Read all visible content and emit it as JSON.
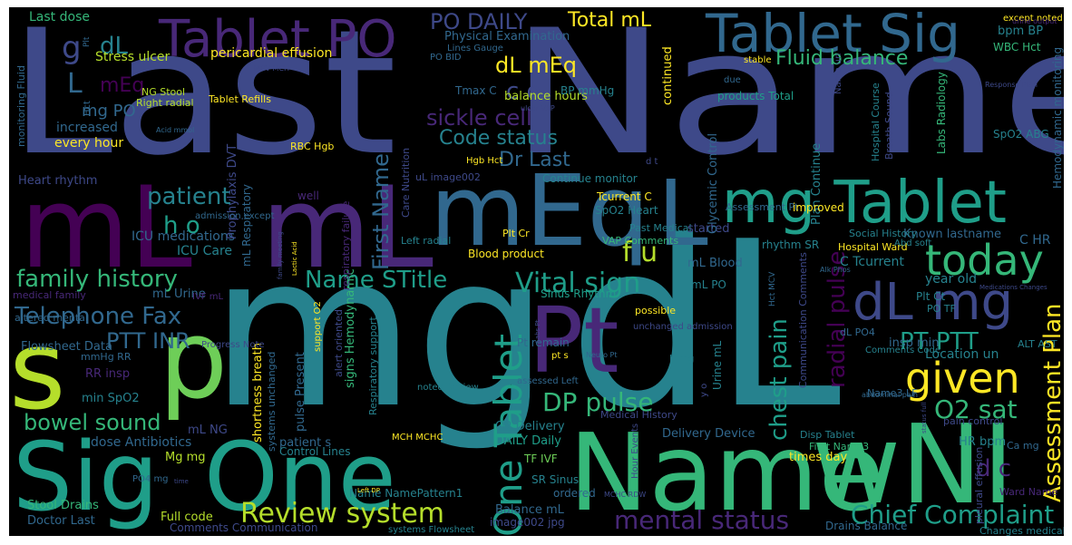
{
  "colors": {
    "background": "#000000",
    "page": "#ffffff",
    "palette": [
      "#440154",
      "#482878",
      "#3e4989",
      "#31688e",
      "#26828e",
      "#1f9e89",
      "#35b779",
      "#6ece58",
      "#b5de2b",
      "#fde725"
    ]
  },
  "words": [
    {
      "text": "Last",
      "color": "#3e4989"
    },
    {
      "text": "Name",
      "color": "#3e4989"
    },
    {
      "text": "mg",
      "color": "#26828e"
    },
    {
      "text": "dL",
      "color": "#26828e"
    },
    {
      "text": "mL",
      "color": "#440154"
    },
    {
      "text": "mL",
      "color": "#482878"
    },
    {
      "text": "s",
      "color": "#b5de2b"
    },
    {
      "text": "p",
      "color": "#6ece58"
    },
    {
      "text": "Sig",
      "color": "#1f9e89"
    },
    {
      "text": "One",
      "color": "#1f9e89"
    },
    {
      "text": "Name",
      "color": "#35b779"
    },
    {
      "text": "wNI",
      "color": "#35b779"
    },
    {
      "text": "Pt",
      "color": "#482878"
    },
    {
      "text": "mEq",
      "color": "#31688e"
    },
    {
      "text": "L",
      "color": "#31688e"
    },
    {
      "text": "mg Tablet",
      "color": "#1f9e89"
    },
    {
      "text": "Tablet Sig",
      "color": "#31688e"
    },
    {
      "text": "Tablet PO",
      "color": "#482878"
    },
    {
      "text": "dL",
      "color": "#3e4989"
    },
    {
      "text": "mg",
      "color": "#3e4989"
    },
    {
      "text": "today",
      "color": "#35b779"
    },
    {
      "text": "given",
      "color": "#fde725"
    },
    {
      "text": "One Tablet",
      "color": "#1f9e89"
    },
    {
      "text": "Review system",
      "color": "#b5de2b"
    },
    {
      "text": "mental status",
      "color": "#482878"
    },
    {
      "text": "Chief Complaint",
      "color": "#1f9e89"
    },
    {
      "text": "family history",
      "color": "#35b779"
    },
    {
      "text": "Telephone Fax",
      "color": "#31688e"
    },
    {
      "text": "bowel sound",
      "color": "#35b779"
    },
    {
      "text": "Vital sign",
      "color": "#1f9e89"
    },
    {
      "text": "DP pulse",
      "color": "#35b779"
    },
    {
      "text": "O2 sat",
      "color": "#35b779"
    },
    {
      "text": "Name STitle",
      "color": "#1f9e89"
    },
    {
      "text": "PTT INR",
      "color": "#31688e"
    },
    {
      "text": "patient",
      "color": "#26828e"
    },
    {
      "text": "h o",
      "color": "#1f9e89"
    },
    {
      "text": "f u",
      "color": "#b5de2b"
    },
    {
      "text": "d c",
      "color": "#482878"
    },
    {
      "text": "PT PTT",
      "color": "#1f9e89"
    },
    {
      "text": "Assessment Plan",
      "color": "#fde725"
    },
    {
      "text": "chest pain",
      "color": "#1f9e89"
    },
    {
      "text": "radial pulse",
      "color": "#440154"
    },
    {
      "text": "First Name",
      "color": "#31688e"
    },
    {
      "text": "sickle cell",
      "color": "#482878"
    },
    {
      "text": "Code status",
      "color": "#26828e"
    },
    {
      "text": "Dr Last",
      "color": "#31688e"
    },
    {
      "text": "dL mEq",
      "color": "#fde725"
    },
    {
      "text": "c o",
      "color": "#3e4989"
    },
    {
      "text": "PO DAILY",
      "color": "#3e4989"
    },
    {
      "text": "Total mL",
      "color": "#fde725"
    },
    {
      "text": "Fluid balance",
      "color": "#35b779"
    },
    {
      "text": "g",
      "color": "#3e4989"
    },
    {
      "text": "dL",
      "color": "#26828e"
    },
    {
      "text": "L",
      "color": "#31688e"
    },
    {
      "text": "mEq",
      "color": "#440154"
    },
    {
      "text": "mg PO",
      "color": "#31688e"
    },
    {
      "text": "Last dose",
      "color": "#35b779"
    },
    {
      "text": "Stress ulcer",
      "color": "#b5de2b"
    },
    {
      "text": "pericardial effusion",
      "color": "#fde725"
    },
    {
      "text": "Physical Examination",
      "color": "#31688e"
    },
    {
      "text": "Lines Gauge",
      "color": "#31688e"
    },
    {
      "text": "increased",
      "color": "#31688e"
    },
    {
      "text": "every hour",
      "color": "#fde725"
    },
    {
      "text": "Heart rhythm",
      "color": "#3e4989"
    },
    {
      "text": "ICU medications",
      "color": "#31688e"
    },
    {
      "text": "ICU Care",
      "color": "#26828e"
    },
    {
      "text": "mL Urine",
      "color": "#31688e"
    },
    {
      "text": "Flowsheet Data",
      "color": "#31688e"
    },
    {
      "text": "mmHg RR",
      "color": "#31688e"
    },
    {
      "text": "RR insp",
      "color": "#482878"
    },
    {
      "text": "min SpO2",
      "color": "#26828e"
    },
    {
      "text": "dose Antibiotics",
      "color": "#31688e"
    },
    {
      "text": "Mg mg",
      "color": "#b5de2b"
    },
    {
      "text": "Stool Drains",
      "color": "#35b779"
    },
    {
      "text": "Doctor Last",
      "color": "#31688e"
    },
    {
      "text": "Full code",
      "color": "#b5de2b"
    },
    {
      "text": "Comments Communication",
      "color": "#3e4989"
    },
    {
      "text": "Name NamePattern1",
      "color": "#26828e"
    },
    {
      "text": "Balance mL",
      "color": "#31688e"
    },
    {
      "text": "image002 jpg",
      "color": "#3e4989"
    },
    {
      "text": "O2 Delivery",
      "color": "#26828e"
    },
    {
      "text": "DAILY Daily",
      "color": "#1f9e89"
    },
    {
      "text": "TF IVF",
      "color": "#6ece58"
    },
    {
      "text": "SR Sinus",
      "color": "#26828e"
    },
    {
      "text": "ordered",
      "color": "#31688e"
    },
    {
      "text": "Delivery Device",
      "color": "#31688e"
    },
    {
      "text": "times day",
      "color": "#fde725"
    },
    {
      "text": "Continue monitor",
      "color": "#26828e"
    },
    {
      "text": "Blood product",
      "color": "#fde725"
    },
    {
      "text": "Sinus Rhythm",
      "color": "#1f9e89"
    },
    {
      "text": "Tcurrent C",
      "color": "#fde725"
    },
    {
      "text": "SpO2 Heart",
      "color": "#26828e"
    },
    {
      "text": "VAP Comments",
      "color": "#35b779"
    },
    {
      "text": "Plt Cr",
      "color": "#fde725"
    },
    {
      "text": "Past Medical",
      "color": "#26828e"
    },
    {
      "text": "started",
      "color": "#3e4989"
    },
    {
      "text": "mL Blood",
      "color": "#31688e"
    },
    {
      "text": "mL PO",
      "color": "#26828e"
    },
    {
      "text": "balance hours",
      "color": "#b5de2b"
    },
    {
      "text": "BP mmHg",
      "color": "#26828e"
    },
    {
      "text": "Tmax C",
      "color": "#31688e"
    },
    {
      "text": "PO BID",
      "color": "#31688e"
    },
    {
      "text": "Known lastname",
      "color": "#31688e"
    },
    {
      "text": "Social History",
      "color": "#26828e"
    },
    {
      "text": "Hospital Ward",
      "color": "#fde725"
    },
    {
      "text": "C Tcurrent",
      "color": "#26828e"
    },
    {
      "text": "C HR",
      "color": "#31688e"
    },
    {
      "text": "year old",
      "color": "#26828e"
    },
    {
      "text": "Plt Ct",
      "color": "#26828e"
    },
    {
      "text": "PO TF",
      "color": "#26828e"
    },
    {
      "text": "insp min",
      "color": "#31688e"
    },
    {
      "text": "Location un",
      "color": "#26828e"
    },
    {
      "text": "Comments Code",
      "color": "#26828e"
    },
    {
      "text": "HR bpm",
      "color": "#26828e"
    },
    {
      "text": "Disp Tablet",
      "color": "#26828e"
    },
    {
      "text": "First Name3",
      "color": "#35b779"
    },
    {
      "text": "Drains Balance",
      "color": "#31688e"
    },
    {
      "text": "Changes medical",
      "color": "#26828e"
    },
    {
      "text": "bpm BP",
      "color": "#26828e"
    },
    {
      "text": "WBC Hct",
      "color": "#35b779"
    },
    {
      "text": "SpO2 ABG",
      "color": "#26828e"
    },
    {
      "text": "Labs Radiology",
      "color": "#35b779"
    },
    {
      "text": "Hemodynamic monitoring",
      "color": "#31688e"
    },
    {
      "text": "Glycemic Control",
      "color": "#31688e"
    },
    {
      "text": "Plan Continue",
      "color": "#26828e"
    },
    {
      "text": "Assessment Pt",
      "color": "#31688e"
    },
    {
      "text": "improved",
      "color": "#fde725"
    },
    {
      "text": "rhythm SR",
      "color": "#26828e"
    },
    {
      "text": "Abd soft",
      "color": "#26828e"
    },
    {
      "text": "ALT AST",
      "color": "#26828e"
    },
    {
      "text": "pain control",
      "color": "#3e4989"
    },
    {
      "text": "Ca mg",
      "color": "#31688e"
    },
    {
      "text": "Ward Name",
      "color": "#482878"
    },
    {
      "text": "Name3 LF",
      "color": "#31688e"
    },
    {
      "text": "dL PO4",
      "color": "#31688e"
    },
    {
      "text": "continued",
      "color": "#fde725"
    },
    {
      "text": "products Total",
      "color": "#1f9e89"
    },
    {
      "text": "Urine mL",
      "color": "#26828e"
    },
    {
      "text": "L mg",
      "color": "#26828e"
    },
    {
      "text": "Medical History",
      "color": "#3e4989"
    },
    {
      "text": "Pt remain",
      "color": "#31688e"
    },
    {
      "text": "noted Review",
      "color": "#26828e"
    },
    {
      "text": "MCH MCHC",
      "color": "#fde725"
    },
    {
      "text": "assessed Left",
      "color": "#31688e"
    },
    {
      "text": "possible",
      "color": "#fde725"
    },
    {
      "text": "Left radial",
      "color": "#26828e"
    },
    {
      "text": "uL image002",
      "color": "#3e4989"
    },
    {
      "text": "Hgb Hct",
      "color": "#fde725"
    },
    {
      "text": "Care Nutrition",
      "color": "#3e4989"
    },
    {
      "text": "signs Hemodynamic",
      "color": "#35b779"
    },
    {
      "text": "pulse Present",
      "color": "#31688e"
    },
    {
      "text": "Respiratory support",
      "color": "#26828e"
    },
    {
      "text": "respiratory failure",
      "color": "#482878"
    },
    {
      "text": "alert oriented",
      "color": "#3e4989"
    },
    {
      "text": "patient s",
      "color": "#31688e"
    },
    {
      "text": "Control Lines",
      "color": "#26828e"
    },
    {
      "text": "shortness breath",
      "color": "#fde725"
    },
    {
      "text": "systems unchanged",
      "color": "#31688e"
    },
    {
      "text": "mL NG",
      "color": "#3e4989"
    },
    {
      "text": "mL Respiratory",
      "color": "#31688e"
    },
    {
      "text": "Prophylaxis DVT",
      "color": "#3e4989"
    },
    {
      "text": "RBC Hgb",
      "color": "#fde725"
    },
    {
      "text": "Tablet Refills",
      "color": "#fde725"
    },
    {
      "text": "NG Stool",
      "color": "#b5de2b"
    },
    {
      "text": "Right radial",
      "color": "#b5de2b"
    },
    {
      "text": "Acid mmol",
      "color": "#31688e"
    },
    {
      "text": "MCV MCH",
      "color": "#3e4989"
    },
    {
      "text": "monitoring Fluid",
      "color": "#31688e"
    },
    {
      "text": "altered mental",
      "color": "#31688e"
    },
    {
      "text": "medical family",
      "color": "#482878"
    },
    {
      "text": "Progress Note",
      "color": "#3e4989"
    },
    {
      "text": "PO4 mg",
      "color": "#31688e"
    },
    {
      "text": "Hour Events",
      "color": "#3e4989"
    },
    {
      "text": "Communication Comments",
      "color": "#3e4989"
    },
    {
      "text": "Hospital Course",
      "color": "#26828e"
    },
    {
      "text": "Breath Sound",
      "color": "#3e4989"
    },
    {
      "text": "pleural effusion",
      "color": "#3e4989"
    },
    {
      "text": "abdominal pain",
      "color": "#31688e"
    },
    {
      "text": "Response Plan",
      "color": "#3e4989"
    },
    {
      "text": "except noted",
      "color": "#fde725"
    },
    {
      "text": "stable",
      "color": "#fde725"
    },
    {
      "text": "Name un",
      "color": "#3e4989"
    },
    {
      "text": "well",
      "color": "#482878"
    },
    {
      "text": "systems Flowsheet",
      "color": "#26828e"
    },
    {
      "text": "IVF mL",
      "color": "#482878"
    },
    {
      "text": "admission except",
      "color": "#31688e"
    },
    {
      "text": "unchanged admission",
      "color": "#3e4989"
    },
    {
      "text": "support O2",
      "color": "#fde725"
    },
    {
      "text": "pt s",
      "color": "#fde725"
    },
    {
      "text": "urine output",
      "color": "#482878"
    },
    {
      "text": "Plt",
      "color": "#31688e"
    },
    {
      "text": "Hct",
      "color": "#31688e"
    },
    {
      "text": "ulcer VAP",
      "color": "#3e4989"
    },
    {
      "text": "due",
      "color": "#31688e"
    },
    {
      "text": "Neuro Pt",
      "color": "#31688e"
    },
    {
      "text": "Alk Phos",
      "color": "#31688e"
    },
    {
      "text": "Hct MCV",
      "color": "#31688e"
    },
    {
      "text": "MCHC RDW",
      "color": "#3e4989"
    },
    {
      "text": "Left DP",
      "color": "#fde725"
    },
    {
      "text": "Lactic Acid",
      "color": "#fde725"
    },
    {
      "text": "family meeting",
      "color": "#3e4989"
    },
    {
      "text": "Medications Changes",
      "color": "#3e4989"
    },
    {
      "text": "Labs Pt",
      "color": "#3e4989"
    },
    {
      "text": "d t",
      "color": "#3e4989"
    },
    {
      "text": "y o",
      "color": "#3e4989"
    },
    {
      "text": "status full",
      "color": "#3e4989"
    },
    {
      "text": "time",
      "color": "#3e4989"
    }
  ]
}
